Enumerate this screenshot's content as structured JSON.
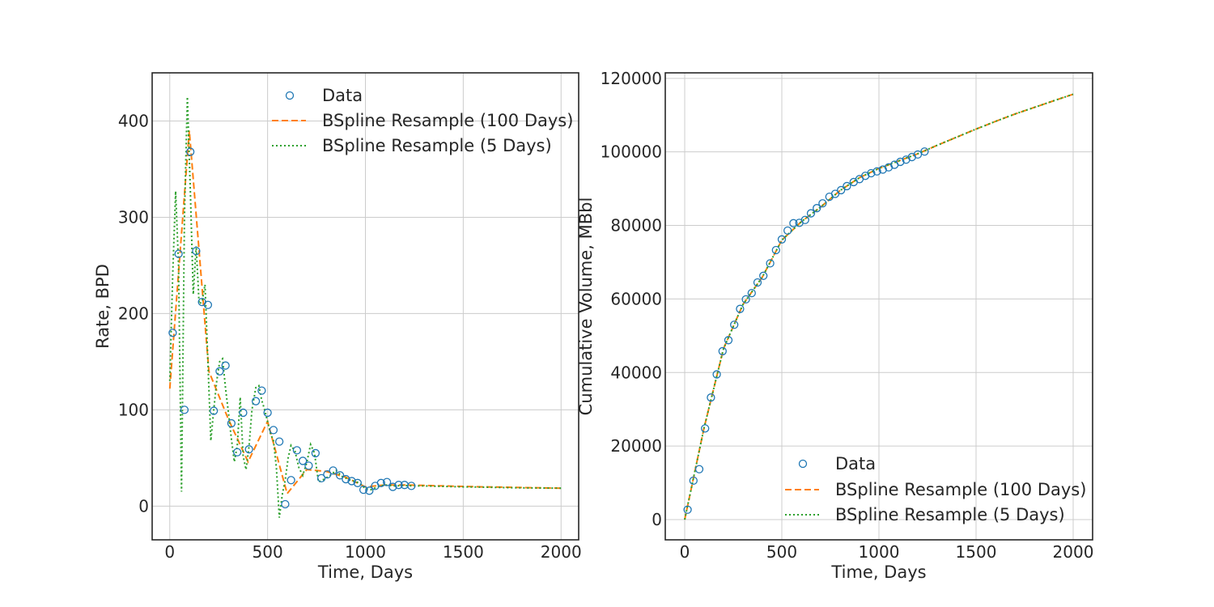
{
  "chart_data": [
    {
      "type": "line",
      "title": "",
      "xlabel": "Time, Days",
      "ylabel": "Rate, BPD",
      "xlim": [
        -90,
        2090
      ],
      "ylim": [
        -35,
        450
      ],
      "x_ticks": [
        0,
        500,
        1000,
        1500,
        2000
      ],
      "y_ticks": [
        0,
        100,
        200,
        300,
        400
      ],
      "grid": true,
      "legend_position": "top-right",
      "series": [
        {
          "name": "Data",
          "style": "markers",
          "color": "#1f77b4",
          "x": [
            15,
            45,
            75,
            105,
            135,
            165,
            195,
            225,
            255,
            285,
            315,
            345,
            375,
            405,
            440,
            470,
            500,
            530,
            560,
            590,
            620,
            650,
            680,
            710,
            745,
            775,
            805,
            835,
            870,
            900,
            930,
            960,
            990,
            1020,
            1050,
            1080,
            1110,
            1140,
            1170,
            1200,
            1235
          ],
          "y": [
            180,
            262,
            100,
            368,
            265,
            212,
            209,
            99,
            140,
            146,
            86,
            56,
            97,
            59,
            109,
            120,
            97,
            79,
            67,
            2,
            27,
            58,
            47,
            42,
            55,
            29,
            33,
            37,
            32,
            28,
            26,
            24,
            17,
            16,
            21,
            24,
            25,
            20,
            22,
            22,
            21
          ]
        },
        {
          "name": "BSpline Resample (100 Days)",
          "style": "dashed",
          "color": "#ff7f0e",
          "x": [
            0,
            100,
            200,
            300,
            400,
            500,
            600,
            700,
            800,
            900,
            1000,
            1100,
            1200,
            1300,
            1400,
            1500,
            1600,
            1700,
            1800,
            1900,
            2000
          ],
          "y": [
            122,
            390,
            140,
            90,
            46,
            88,
            13,
            38,
            36,
            30,
            20,
            22,
            22,
            21.5,
            21,
            20.5,
            20,
            19.7,
            19.3,
            19,
            18.6
          ]
        },
        {
          "name": "BSpline Resample (5 Days)",
          "style": "dotted",
          "color": "#2ca02c",
          "x": [
            0,
            15,
            30,
            45,
            60,
            75,
            90,
            105,
            120,
            135,
            150,
            165,
            180,
            195,
            210,
            225,
            240,
            255,
            270,
            285,
            300,
            315,
            330,
            345,
            360,
            375,
            390,
            405,
            420,
            440,
            455,
            470,
            485,
            500,
            515,
            530,
            545,
            560,
            575,
            590,
            605,
            620,
            640,
            660,
            680,
            700,
            720,
            740,
            760,
            790,
            820,
            850,
            880,
            910,
            940,
            970,
            1000,
            1030,
            1060,
            1100,
            1150,
            1200,
            1250,
            1300,
            1400,
            1500,
            1600,
            1700,
            1800,
            1900,
            2000
          ],
          "y": [
            130,
            240,
            327,
            250,
            15,
            300,
            425,
            330,
            220,
            270,
            210,
            212,
            230,
            150,
            68,
            100,
            130,
            150,
            153,
            122,
            97,
            70,
            46,
            63,
            113,
            52,
            38,
            62,
            100,
            123,
            125,
            110,
            100,
            88,
            75,
            68,
            40,
            -12,
            12,
            27,
            50,
            63,
            57,
            40,
            32,
            45,
            64,
            55,
            25,
            28,
            32,
            37,
            31,
            28,
            26,
            24,
            18,
            17,
            20,
            22,
            21,
            21.5,
            21,
            21,
            20.5,
            20,
            19.7,
            19.3,
            19,
            18.8,
            18.6
          ]
        }
      ]
    },
    {
      "type": "line",
      "title": "",
      "xlabel": "Time, Days",
      "ylabel": "Cumulative Volume, MBbl",
      "xlim": [
        -100,
        2100
      ],
      "ylim": [
        -5500,
        121500
      ],
      "x_ticks": [
        0,
        500,
        1000,
        1500,
        2000
      ],
      "y_ticks": [
        0,
        20000,
        40000,
        60000,
        80000,
        100000,
        120000
      ],
      "grid": true,
      "legend_position": "bottom-right",
      "series": [
        {
          "name": "Data",
          "style": "markers",
          "color": "#1f77b4",
          "x": [
            15,
            45,
            75,
            105,
            135,
            165,
            195,
            225,
            255,
            285,
            315,
            345,
            375,
            405,
            440,
            470,
            500,
            530,
            560,
            590,
            620,
            650,
            680,
            710,
            745,
            775,
            805,
            835,
            870,
            900,
            930,
            960,
            990,
            1020,
            1050,
            1080,
            1110,
            1140,
            1170,
            1200,
            1235
          ],
          "y": [
            2700,
            10600,
            13700,
            24800,
            33200,
            39500,
            45800,
            48800,
            53000,
            57300,
            59900,
            61600,
            64500,
            66300,
            69700,
            73300,
            76200,
            78600,
            80600,
            80700,
            81500,
            83300,
            84700,
            86000,
            87800,
            88600,
            89600,
            90700,
            91800,
            92600,
            93500,
            94200,
            94700,
            95200,
            95800,
            96500,
            97300,
            97900,
            98600,
            99300,
            100100
          ]
        },
        {
          "name": "BSpline Resample (100 Days)",
          "style": "dashed",
          "color": "#ff7f0e",
          "x": [
            0,
            100,
            200,
            300,
            400,
            500,
            600,
            700,
            800,
            900,
            1000,
            1100,
            1200,
            1300,
            1400,
            1500,
            1600,
            1700,
            1800,
            1900,
            2000
          ],
          "y": [
            0,
            25000,
            46500,
            58500,
            66000,
            76000,
            81000,
            85000,
            89500,
            93000,
            95500,
            97500,
            99500,
            101800,
            104000,
            106200,
            108300,
            110300,
            112100,
            113900,
            115700
          ]
        },
        {
          "name": "BSpline Resample (5 Days)",
          "style": "dotted",
          "color": "#2ca02c",
          "x": [
            0,
            100,
            200,
            300,
            400,
            500,
            600,
            700,
            800,
            900,
            1000,
            1100,
            1200,
            1300,
            1400,
            1500,
            1600,
            1700,
            1800,
            1900,
            2000
          ],
          "y": [
            0,
            25000,
            46500,
            58500,
            66000,
            76000,
            81000,
            85000,
            89500,
            93000,
            95500,
            97500,
            99500,
            101800,
            104000,
            106200,
            108300,
            110300,
            112100,
            113900,
            115700
          ]
        }
      ]
    }
  ]
}
